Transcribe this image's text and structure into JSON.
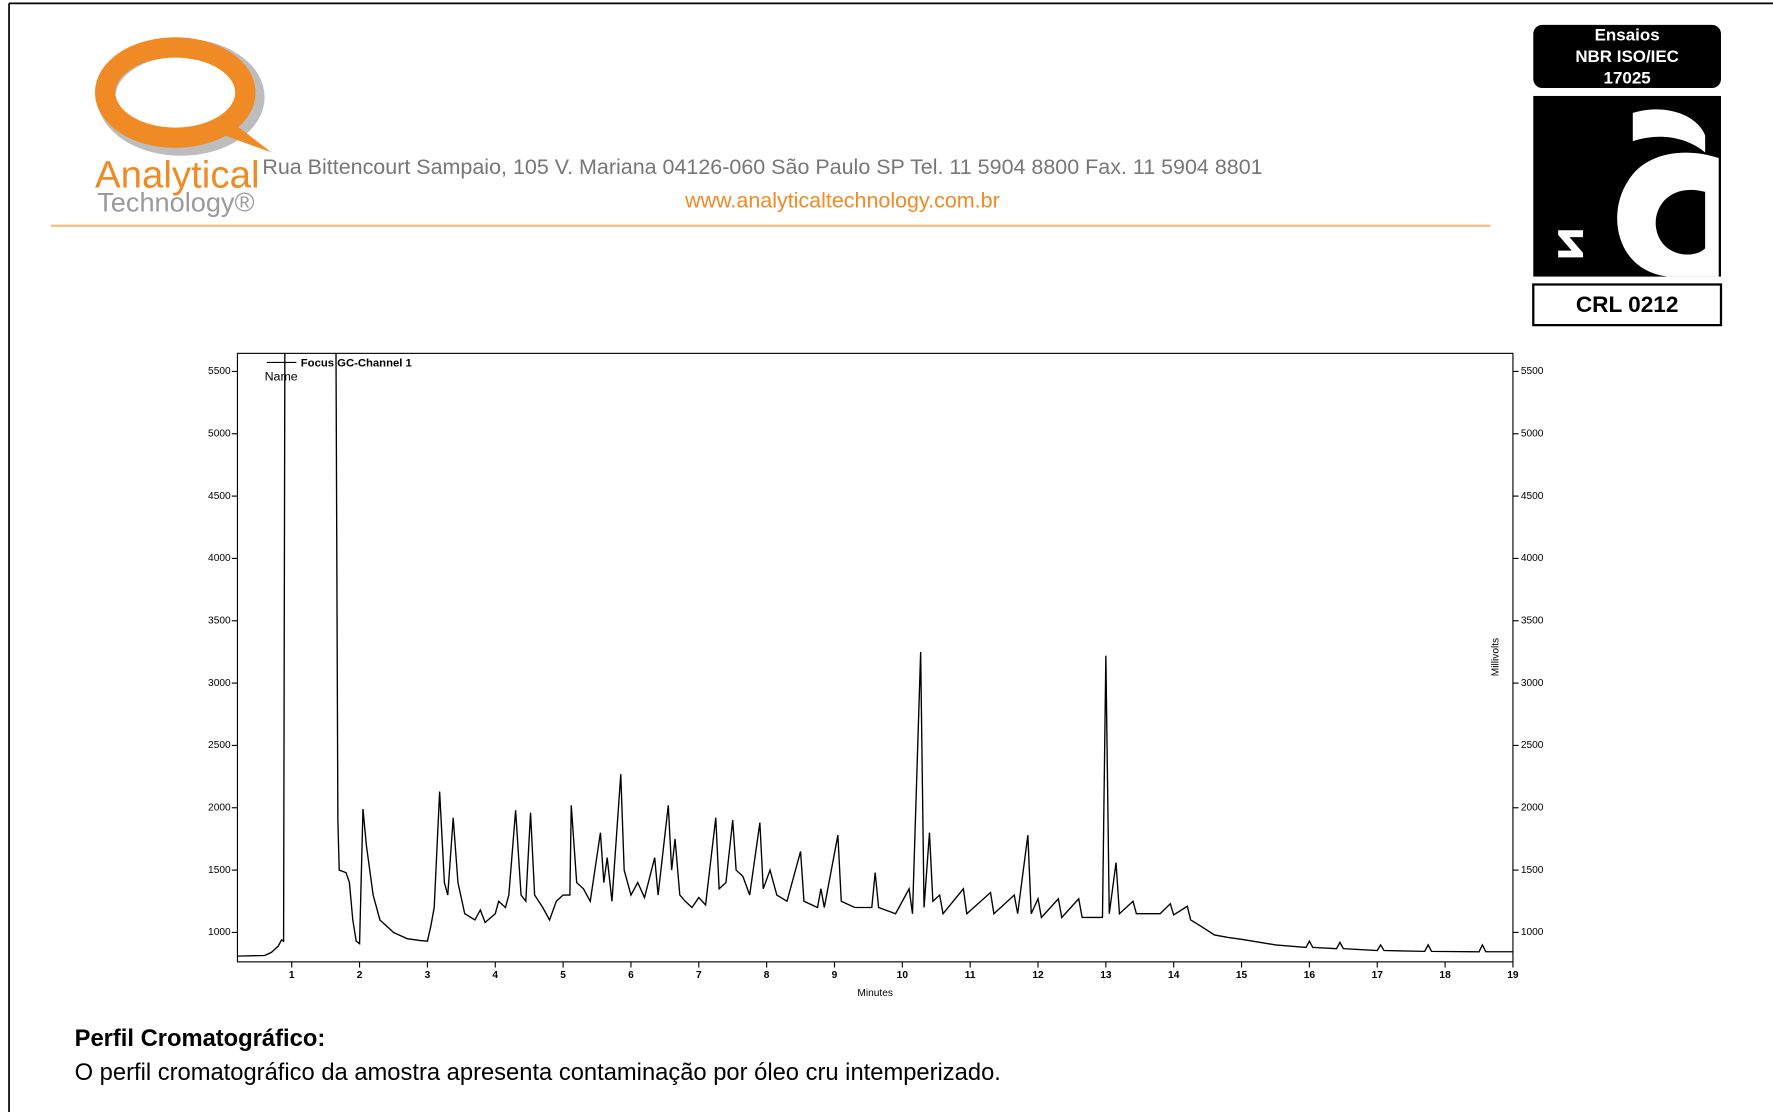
{
  "header": {
    "logo_line1": "Analytical",
    "logo_line2": "Technology®",
    "address": "Rua Bittencourt Sampaio, 105  V. Mariana 04126-060 São Paulo SP  Tel. 11 5904 8800 Fax. 11  5904 8801",
    "website": "www.analyticaltechnology.com.br",
    "badge": {
      "line1": "Ensaios",
      "line2": "NBR ISO/IEC",
      "line3": "17025",
      "code": "CRL 0212"
    }
  },
  "chart_data": {
    "type": "line",
    "legend_name": "Focus GC-Channel 1",
    "legend_label": "Name",
    "xlabel": "Minutes",
    "ylabel": "Millivolts",
    "xlim": [
      0.2,
      19
    ],
    "xticks": [
      1,
      2,
      3,
      4,
      5,
      6,
      7,
      8,
      9,
      10,
      11,
      12,
      13,
      14,
      15,
      16,
      17,
      18,
      19
    ],
    "ylim": [
      764,
      5645
    ],
    "yticks": [
      1000,
      1500,
      2000,
      2500,
      3000,
      3500,
      4000,
      4500,
      5000,
      5500
    ],
    "color": "#000000",
    "x": [
      0.2,
      0.6,
      0.7,
      0.8,
      0.85,
      0.88,
      0.9,
      1.65,
      1.68,
      1.7,
      1.8,
      1.85,
      1.9,
      1.95,
      2.0,
      2.05,
      2.1,
      2.2,
      2.3,
      2.5,
      2.7,
      2.9,
      3.0,
      3.05,
      3.1,
      3.18,
      3.25,
      3.3,
      3.38,
      3.45,
      3.55,
      3.7,
      3.78,
      3.85,
      4.0,
      4.05,
      4.15,
      4.2,
      4.3,
      4.38,
      4.45,
      4.52,
      4.58,
      4.7,
      4.8,
      4.9,
      5.0,
      5.1,
      5.12,
      5.2,
      5.3,
      5.4,
      5.55,
      5.6,
      5.65,
      5.72,
      5.85,
      5.9,
      6.0,
      6.1,
      6.2,
      6.35,
      6.4,
      6.55,
      6.6,
      6.65,
      6.72,
      6.8,
      6.9,
      7.0,
      7.1,
      7.25,
      7.3,
      7.4,
      7.5,
      7.55,
      7.65,
      7.75,
      7.9,
      7.95,
      8.05,
      8.15,
      8.3,
      8.5,
      8.55,
      8.75,
      8.8,
      8.85,
      9.05,
      9.1,
      9.3,
      9.55,
      9.6,
      9.65,
      9.9,
      10.1,
      10.15,
      10.27,
      10.32,
      10.4,
      10.45,
      10.55,
      10.6,
      10.9,
      10.95,
      11.3,
      11.35,
      11.65,
      11.7,
      11.85,
      11.9,
      12.0,
      12.05,
      12.3,
      12.35,
      12.6,
      12.65,
      12.95,
      13.0,
      13.05,
      13.15,
      13.2,
      13.4,
      13.45,
      13.8,
      13.95,
      14.0,
      14.2,
      14.25,
      14.4,
      14.6,
      14.8,
      15.0,
      15.5,
      15.95,
      16.0,
      16.05,
      16.4,
      16.45,
      16.5,
      17.0,
      17.05,
      17.1,
      17.7,
      17.75,
      17.8,
      18.5,
      18.55,
      18.6,
      19.0
    ],
    "values": [
      810,
      815,
      840,
      890,
      940,
      930,
      6000,
      6000,
      1900,
      1500,
      1480,
      1400,
      1100,
      930,
      910,
      1990,
      1700,
      1300,
      1100,
      1000,
      950,
      935,
      930,
      1050,
      1200,
      2130,
      1400,
      1300,
      1920,
      1400,
      1150,
      1100,
      1180,
      1080,
      1150,
      1250,
      1200,
      1300,
      1980,
      1300,
      1250,
      1960,
      1300,
      1200,
      1100,
      1250,
      1300,
      1300,
      2020,
      1400,
      1350,
      1250,
      1800,
      1400,
      1600,
      1250,
      2270,
      1500,
      1300,
      1400,
      1280,
      1600,
      1300,
      2020,
      1500,
      1750,
      1300,
      1250,
      1200,
      1280,
      1220,
      1920,
      1350,
      1400,
      1900,
      1500,
      1450,
      1300,
      1880,
      1350,
      1500,
      1300,
      1250,
      1650,
      1250,
      1200,
      1350,
      1200,
      1780,
      1250,
      1200,
      1200,
      1480,
      1200,
      1150,
      1350,
      1150,
      3250,
      1200,
      1800,
      1250,
      1300,
      1150,
      1350,
      1150,
      1320,
      1150,
      1300,
      1150,
      1780,
      1150,
      1270,
      1120,
      1270,
      1120,
      1270,
      1120,
      1120,
      3220,
      1150,
      1560,
      1150,
      1250,
      1150,
      1150,
      1230,
      1140,
      1210,
      1100,
      1050,
      980,
      960,
      945,
      900,
      880,
      930,
      880,
      870,
      920,
      870,
      855,
      900,
      855,
      848,
      900,
      848,
      845,
      900,
      845,
      845
    ]
  },
  "section": {
    "heading": "Perfil Cromatográfico:",
    "text": "O perfil cromatográfico da amostra apresenta contaminação por óleo cru intemperizado."
  }
}
